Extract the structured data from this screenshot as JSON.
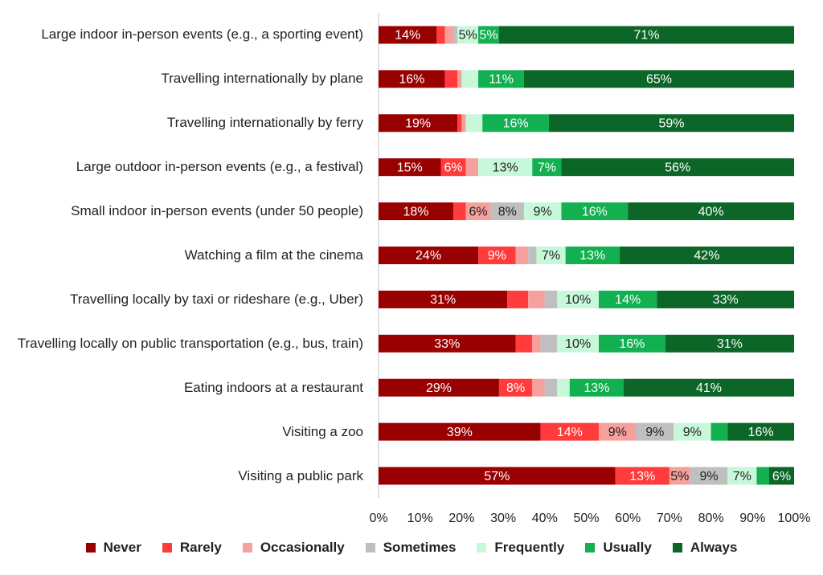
{
  "chart_data": {
    "type": "stacked-barh",
    "categories": [
      "Large indoor in-person events (e.g., a sporting event)",
      "Travelling internationally by plane",
      "Travelling internationally by ferry",
      "Large outdoor in-person events (e.g., a festival)",
      "Small indoor in-person events (under 50 people)",
      "Watching a film at the cinema",
      "Travelling locally by taxi or rideshare (e.g., Uber)",
      "Travelling locally on public transportation (e.g., bus, train)",
      "Eating indoors at a restaurant",
      "Visiting a zoo",
      "Visiting a public park"
    ],
    "series": [
      {
        "name": "Never",
        "color": "#990000",
        "values": [
          14,
          16,
          19,
          15,
          18,
          24,
          31,
          33,
          29,
          39,
          57
        ],
        "value_labels": [
          "14%",
          "16%",
          "19%",
          "15%",
          "18%",
          "24%",
          "31%",
          "33%",
          "29%",
          "39%",
          "57%"
        ]
      },
      {
        "name": "Rarely",
        "color": "#ff3b3b",
        "values": [
          2,
          3,
          1,
          6,
          3,
          9,
          5,
          4,
          8,
          14,
          13
        ],
        "value_labels": [
          null,
          null,
          null,
          "6%",
          null,
          "9%",
          null,
          null,
          "8%",
          "14%",
          "13%"
        ]
      },
      {
        "name": "Occasionally",
        "color": "#f4a09c",
        "values": [
          2,
          1,
          1,
          3,
          6,
          3,
          4,
          2,
          3,
          9,
          5
        ],
        "value_labels": [
          null,
          null,
          null,
          null,
          "6%",
          null,
          null,
          null,
          null,
          "9%",
          "5%"
        ]
      },
      {
        "name": "Sometimes",
        "color": "#bfbfbf",
        "values": [
          1,
          0,
          0,
          0,
          8,
          2,
          3,
          4,
          3,
          9,
          9
        ],
        "value_labels": [
          null,
          null,
          null,
          null,
          "8%",
          null,
          null,
          null,
          null,
          "9%",
          "9%"
        ]
      },
      {
        "name": "Frequently",
        "color": "#c8f8da",
        "values": [
          5,
          4,
          4,
          13,
          9,
          7,
          10,
          10,
          3,
          9,
          7
        ],
        "value_labels": [
          "5%",
          null,
          null,
          "13%",
          "9%",
          "7%",
          "10%",
          "10%",
          null,
          "9%",
          "7%"
        ]
      },
      {
        "name": "Usually",
        "color": "#12b050",
        "values": [
          5,
          11,
          16,
          7,
          16,
          13,
          14,
          16,
          13,
          4,
          3
        ],
        "value_labels": [
          "5%",
          "11%",
          "16%",
          "7%",
          "16%",
          "13%",
          "14%",
          "16%",
          "13%",
          null,
          null
        ]
      },
      {
        "name": "Always",
        "color": "#0b6628",
        "values": [
          71,
          65,
          59,
          56,
          40,
          42,
          33,
          31,
          41,
          16,
          6
        ],
        "value_labels": [
          "71%",
          "65%",
          "59%",
          "56%",
          "40%",
          "42%",
          "33%",
          "31%",
          "41%",
          "16%",
          "6%"
        ]
      }
    ],
    "xlim": [
      0,
      100
    ],
    "xticks": [
      {
        "value": 0,
        "label": "0%"
      },
      {
        "value": 10,
        "label": "10%"
      },
      {
        "value": 20,
        "label": "20%"
      },
      {
        "value": 30,
        "label": "30%"
      },
      {
        "value": 40,
        "label": "40%"
      },
      {
        "value": 50,
        "label": "50%"
      },
      {
        "value": 60,
        "label": "60%"
      },
      {
        "value": 70,
        "label": "70%"
      },
      {
        "value": 80,
        "label": "80%"
      },
      {
        "value": 90,
        "label": "90%"
      },
      {
        "value": 100,
        "label": "100%"
      }
    ],
    "grid": false,
    "legend": "bottom"
  }
}
